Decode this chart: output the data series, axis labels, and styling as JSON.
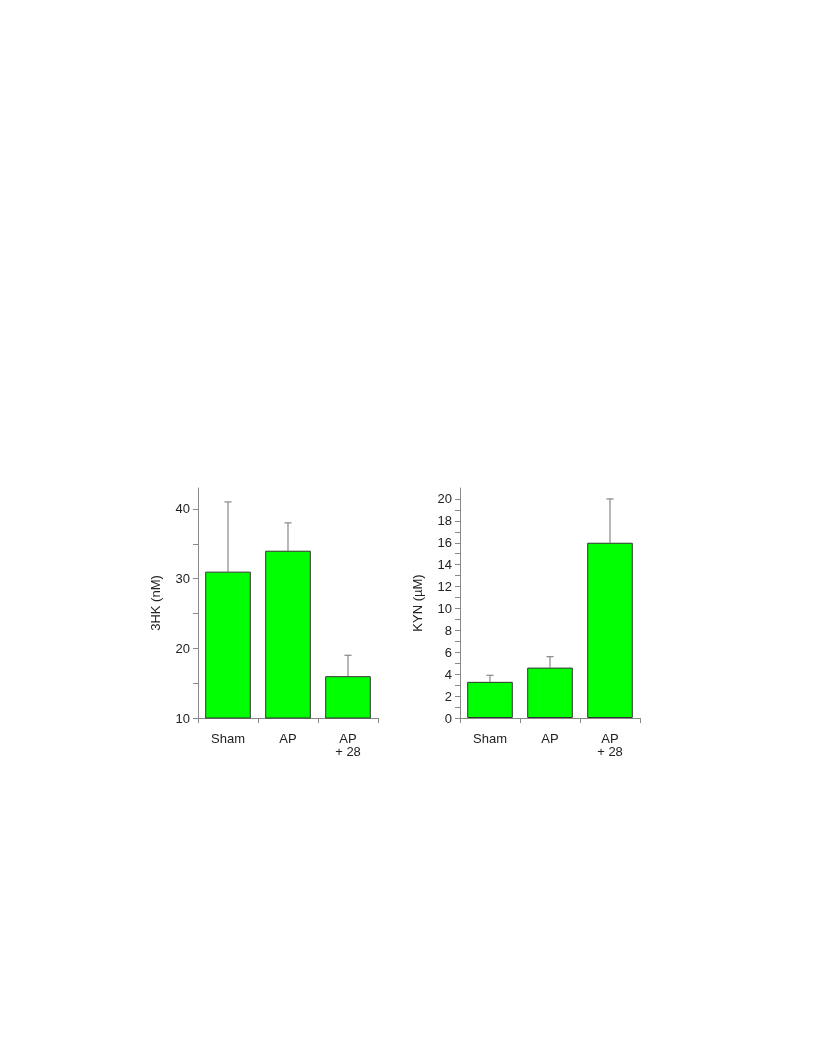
{
  "chart_data": [
    {
      "type": "bar",
      "ylabel": "3HK (nM)",
      "categories": [
        "Sham",
        "AP",
        "AP\n+ 28"
      ],
      "values": [
        31,
        34,
        16
      ],
      "errors": [
        [
          31,
          41
        ],
        [
          34,
          38
        ],
        [
          16,
          19
        ]
      ],
      "color": "#00ff00",
      "ylim": [
        10,
        43
      ],
      "yticks": [
        10,
        {
          "value": 15,
          "label": null
        },
        20,
        {
          "value": 25,
          "label": null
        },
        30,
        {
          "value": 35,
          "label": null
        },
        40
      ],
      "grid": false
    },
    {
      "type": "bar",
      "ylabel": "KYN (µM)",
      "categories": [
        "Sham",
        "AP",
        "AP\n+ 28"
      ],
      "values": [
        3.3,
        4.6,
        16
      ],
      "errors": [
        [
          3.3,
          3.9
        ],
        [
          4.6,
          5.6
        ],
        [
          16,
          20
        ]
      ],
      "color": "#00ff00",
      "ylim": [
        0,
        21
      ],
      "yticks": [
        0,
        {
          "value": 1,
          "label": null
        },
        2,
        {
          "value": 3,
          "label": null
        },
        4,
        {
          "value": 5,
          "label": null
        },
        6,
        {
          "value": 7,
          "label": null
        },
        8,
        {
          "value": 9,
          "label": null
        },
        10,
        {
          "value": 11,
          "label": null
        },
        12,
        {
          "value": 13,
          "label": null
        },
        14,
        {
          "value": 15,
          "label": null
        },
        16,
        {
          "value": 17,
          "label": null
        },
        18,
        {
          "value": 19,
          "label": null
        },
        20
      ],
      "grid": false
    }
  ]
}
